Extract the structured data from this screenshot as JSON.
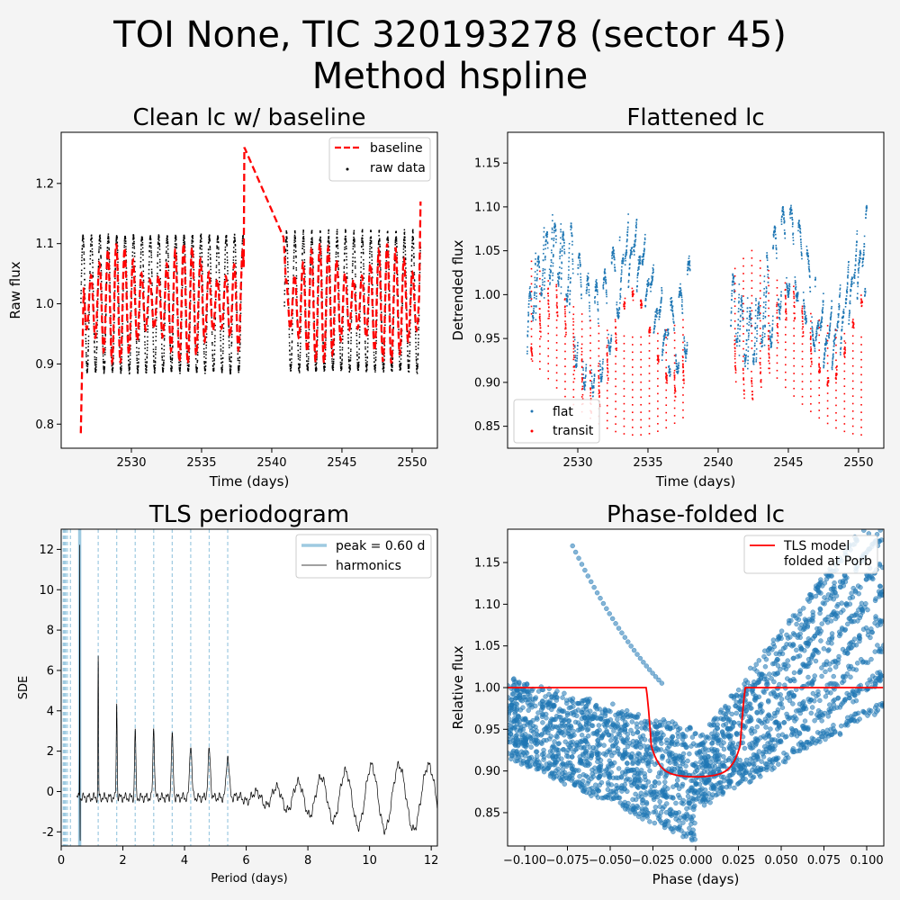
{
  "figure": {
    "title_line1": "TOI None, TIC 320193278 (sector 45)",
    "title_line2": "Method hspline",
    "background": "#f4f4f4"
  },
  "chart_data": [
    {
      "id": "clean_lc",
      "type": "scatter",
      "title": "Clean lc w/ baseline",
      "xlabel": "Time (days)",
      "ylabel": "Raw flux",
      "xlim": [
        2525.0,
        2551.8
      ],
      "ylim": [
        0.76,
        1.285
      ],
      "xticks": [
        2530,
        2535,
        2540,
        2545,
        2550
      ],
      "yticks": [
        0.8,
        0.9,
        1.0,
        1.1,
        1.2
      ],
      "ytick_labels": [
        "0.8",
        "0.9",
        "1.0",
        "1.1",
        "1.2"
      ],
      "legend": {
        "position": "top-right",
        "entries": [
          "baseline",
          "raw data"
        ]
      },
      "time_ranges": [
        [
          2526.4,
          2538.0
        ],
        [
          2540.9,
          2550.6
        ]
      ],
      "series": [
        {
          "name": "raw data",
          "kind": "scatter",
          "color": "#000000",
          "description_values": {
            "oscillation_period_d": 0.6,
            "min": 0.87,
            "max": 1.12
          }
        },
        {
          "name": "baseline",
          "kind": "dashed-line",
          "color": "#ff0000",
          "points": [
            [
              2526.4,
              0.785
            ],
            [
              2526.6,
              1.0
            ],
            [
              2538.0,
              1.0
            ],
            [
              2538.05,
              1.26
            ],
            [
              2540.9,
              1.11
            ],
            [
              2541.0,
              1.0
            ],
            [
              2550.5,
              1.0
            ],
            [
              2550.6,
              1.17
            ]
          ],
          "description_values": {
            "mid_oscillation_min": 0.93,
            "mid_oscillation_max": 1.08
          }
        }
      ]
    },
    {
      "id": "flattened_lc",
      "type": "scatter",
      "title": "Flattened lc",
      "xlabel": "Time (days)",
      "ylabel": "Detrended flux",
      "xlim": [
        2525.0,
        2551.8
      ],
      "ylim": [
        0.825,
        1.185
      ],
      "xticks": [
        2530,
        2535,
        2540,
        2545,
        2550
      ],
      "yticks": [
        0.85,
        0.9,
        0.95,
        1.0,
        1.05,
        1.1,
        1.15
      ],
      "ytick_labels": [
        "0.85",
        "0.90",
        "0.95",
        "1.00",
        "1.05",
        "1.10",
        "1.15"
      ],
      "legend": {
        "position": "lower-left",
        "entries": [
          "flat",
          "transit"
        ]
      },
      "series": [
        {
          "name": "flat",
          "kind": "scatter",
          "color": "#1f77b4"
        },
        {
          "name": "transit",
          "kind": "scatter",
          "color": "#ff0000"
        }
      ]
    },
    {
      "id": "tls_periodogram",
      "type": "line",
      "title": "TLS periodogram",
      "xlabel": "Period (days)",
      "ylabel": "SDE",
      "xlim": [
        0,
        12.2
      ],
      "ylim": [
        -2.7,
        13.0
      ],
      "xticks": [
        0,
        2,
        4,
        6,
        8,
        10,
        12
      ],
      "yticks": [
        -2,
        0,
        2,
        4,
        6,
        8,
        10,
        12
      ],
      "legend": {
        "position": "top-right",
        "entries": [
          "peak = 0.60 d",
          "harmonics"
        ]
      },
      "peak_period": 0.6,
      "peak_sde": 12.35,
      "harmonic_periods": [
        0.067,
        0.086,
        0.1,
        0.12,
        0.15,
        0.2,
        0.3,
        1.2,
        1.8,
        2.4,
        3.0,
        3.6,
        4.2,
        4.8,
        5.4
      ],
      "harmonic_sde": [
        [
          1.2,
          6.9
        ],
        [
          1.8,
          4.7
        ],
        [
          2.4,
          3.4
        ],
        [
          3.0,
          3.5
        ],
        [
          3.6,
          3.0
        ],
        [
          4.2,
          2.7
        ],
        [
          4.8,
          2.3
        ],
        [
          5.4,
          2.1
        ]
      ],
      "series": [
        {
          "name": "peak = 0.60 d",
          "kind": "vline",
          "color": "#9ecae1"
        },
        {
          "name": "harmonics",
          "kind": "line",
          "color": "#000000"
        }
      ]
    },
    {
      "id": "phase_folded",
      "type": "scatter",
      "title": "Phase-folded lc",
      "xlabel": "Phase (days)",
      "ylabel": "Relative flux",
      "xlim": [
        -0.11,
        0.11
      ],
      "ylim": [
        0.81,
        1.19
      ],
      "xticks": [
        -0.1,
        -0.075,
        -0.05,
        -0.025,
        0.0,
        0.025,
        0.05,
        0.075,
        0.1
      ],
      "xtick_labels": [
        "−0.100",
        "−0.075",
        "−0.050",
        "−0.025",
        "0.000",
        "0.025",
        "0.050",
        "0.075",
        "0.100"
      ],
      "yticks": [
        0.85,
        0.9,
        0.95,
        1.0,
        1.05,
        1.1,
        1.15
      ],
      "ytick_labels": [
        "0.85",
        "0.90",
        "0.95",
        "1.00",
        "1.05",
        "1.10",
        "1.15"
      ],
      "legend": {
        "position": "top-right",
        "entries": [
          "TLS model\nfolded at Porb"
        ]
      },
      "model": {
        "depth_min": 0.893,
        "half_width": 0.029,
        "ingress": 0.003
      },
      "series": [
        {
          "name": "data",
          "kind": "scatter",
          "color": "#1f77b4"
        },
        {
          "name": "TLS model\nfolded at Porb",
          "kind": "line",
          "color": "#ff0000"
        }
      ]
    }
  ]
}
